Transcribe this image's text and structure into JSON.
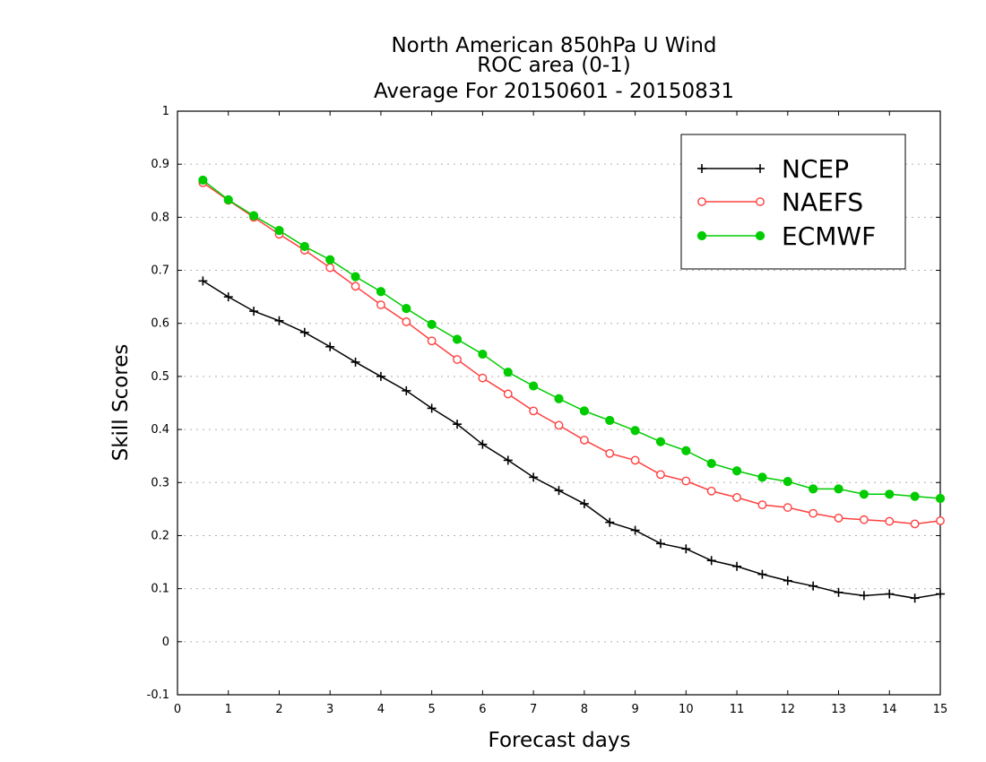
{
  "chart_data": {
    "type": "line",
    "title": [
      "North American 850hPa U Wind",
      "ROC area (0-1)",
      "Average For 20150601 - 20150831"
    ],
    "xlabel": "Forecast days",
    "ylabel": "Skill Scores",
    "xlim": [
      0,
      15
    ],
    "ylim": [
      -0.1,
      1
    ],
    "xticks": [
      "0",
      "1",
      "2",
      "3",
      "4",
      "5",
      "6",
      "7",
      "8",
      "9",
      "10",
      "11",
      "12",
      "13",
      "14",
      "15"
    ],
    "yticks": [
      "-0.1",
      "0",
      "0.1",
      "0.2",
      "0.3",
      "0.4",
      "0.5",
      "0.6",
      "0.7",
      "0.8",
      "0.9",
      "1"
    ],
    "grid": true,
    "legend_position": "top-right",
    "x": [
      0.5,
      1,
      1.5,
      2,
      2.5,
      3,
      3.5,
      4,
      4.5,
      5,
      5.5,
      6,
      6.5,
      7,
      7.5,
      8,
      8.5,
      9,
      9.5,
      10,
      10.5,
      11,
      11.5,
      12,
      12.5,
      13,
      13.5,
      14,
      14.5,
      15
    ],
    "series": [
      {
        "name": "NCEP",
        "color": "#000000",
        "marker": "plus",
        "values": [
          0.68,
          0.65,
          0.623,
          0.605,
          0.583,
          0.556,
          0.527,
          0.5,
          0.473,
          0.44,
          0.41,
          0.372,
          0.342,
          0.31,
          0.285,
          0.26,
          0.225,
          0.21,
          0.185,
          0.175,
          0.153,
          0.142,
          0.127,
          0.115,
          0.105,
          0.093,
          0.087,
          0.09,
          0.082,
          0.09
        ]
      },
      {
        "name": "NAEFS",
        "color": "#ff4040",
        "marker": "open-circle",
        "values": [
          0.865,
          0.832,
          0.8,
          0.768,
          0.738,
          0.705,
          0.67,
          0.635,
          0.603,
          0.567,
          0.532,
          0.497,
          0.467,
          0.435,
          0.408,
          0.38,
          0.355,
          0.342,
          0.315,
          0.303,
          0.284,
          0.272,
          0.258,
          0.253,
          0.242,
          0.233,
          0.23,
          0.227,
          0.222,
          0.228
        ]
      },
      {
        "name": "ECMWF",
        "color": "#00cc00",
        "marker": "filled-circle",
        "values": [
          0.87,
          0.833,
          0.803,
          0.775,
          0.745,
          0.72,
          0.688,
          0.66,
          0.628,
          0.598,
          0.57,
          0.542,
          0.508,
          0.482,
          0.458,
          0.435,
          0.417,
          0.398,
          0.377,
          0.36,
          0.336,
          0.322,
          0.31,
          0.302,
          0.288,
          0.288,
          0.278,
          0.278,
          0.274,
          0.27
        ]
      }
    ]
  }
}
